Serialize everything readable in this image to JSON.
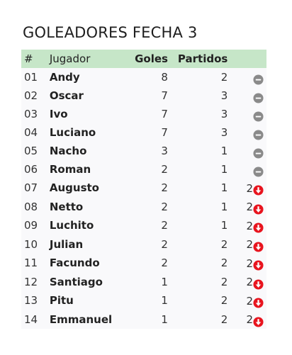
{
  "title": "GOLEADORES FECHA 3",
  "columns": {
    "num": "#",
    "player": "Jugador",
    "goals": "Goles",
    "matches": "Partidos"
  },
  "colors": {
    "header_bg": "#c6e6c8",
    "row_bg": "#f9f9fb",
    "neutral_icon": "#8a8a8a",
    "down_icon": "#e8141e"
  },
  "rows": [
    {
      "num": "01",
      "player": "Andy",
      "goals": "8",
      "matches": "2",
      "trend": "",
      "icon": "minus-circle-icon"
    },
    {
      "num": "02",
      "player": "Oscar",
      "goals": "7",
      "matches": "3",
      "trend": "",
      "icon": "minus-circle-icon"
    },
    {
      "num": "03",
      "player": "Ivo",
      "goals": "7",
      "matches": "3",
      "trend": "",
      "icon": "minus-circle-icon"
    },
    {
      "num": "04",
      "player": "Luciano",
      "goals": "7",
      "matches": "3",
      "trend": "",
      "icon": "minus-circle-icon"
    },
    {
      "num": "05",
      "player": "Nacho",
      "goals": "3",
      "matches": "1",
      "trend": "",
      "icon": "minus-circle-icon"
    },
    {
      "num": "06",
      "player": "Roman",
      "goals": "2",
      "matches": "1",
      "trend": "",
      "icon": "minus-circle-icon"
    },
    {
      "num": "07",
      "player": "Augusto",
      "goals": "2",
      "matches": "1",
      "trend": "2",
      "icon": "arrow-down-circle-icon"
    },
    {
      "num": "08",
      "player": "Netto",
      "goals": "2",
      "matches": "1",
      "trend": "2",
      "icon": "arrow-down-circle-icon"
    },
    {
      "num": "09",
      "player": "Luchito",
      "goals": "2",
      "matches": "1",
      "trend": "2",
      "icon": "arrow-down-circle-icon"
    },
    {
      "num": "10",
      "player": "Julian",
      "goals": "2",
      "matches": "2",
      "trend": "2",
      "icon": "arrow-down-circle-icon"
    },
    {
      "num": "11",
      "player": "Facundo",
      "goals": "2",
      "matches": "2",
      "trend": "2",
      "icon": "arrow-down-circle-icon"
    },
    {
      "num": "12",
      "player": "Santiago",
      "goals": "1",
      "matches": "2",
      "trend": "2",
      "icon": "arrow-down-circle-icon"
    },
    {
      "num": "13",
      "player": "Pitu",
      "goals": "1",
      "matches": "2",
      "trend": "2",
      "icon": "arrow-down-circle-icon"
    },
    {
      "num": "14",
      "player": "Emmanuel",
      "goals": "1",
      "matches": "2",
      "trend": "2",
      "icon": "arrow-down-circle-icon"
    }
  ]
}
